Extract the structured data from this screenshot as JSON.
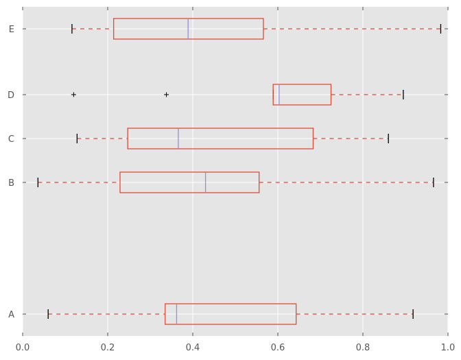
{
  "chart_data": {
    "type": "boxplot",
    "orientation": "horizontal",
    "style": "ggplot",
    "grid": true,
    "xlim": [
      0.0,
      1.0
    ],
    "xticks": [
      "0.0",
      "0.2",
      "0.4",
      "0.6",
      "0.8",
      "1.0"
    ],
    "xtick_values": [
      0.0,
      0.2,
      0.4,
      0.6,
      0.8,
      1.0
    ],
    "ylim": [
      0.5,
      8.0
    ],
    "colors": {
      "plot_background": "#e5e5e5",
      "grid": "#ffffff",
      "box": "#e24a33",
      "median": "#988ed5",
      "whisker": "#e24a33",
      "cap": "#000000",
      "flier": "#000000"
    },
    "boxes": [
      {
        "label": "A",
        "position": 1,
        "whislo": 0.06,
        "q1": 0.335,
        "median": 0.362,
        "q3": 0.643,
        "whishi": 0.918,
        "fliers": []
      },
      {
        "label": "B",
        "position": 4,
        "whislo": 0.036,
        "q1": 0.229,
        "median": 0.43,
        "q3": 0.556,
        "whishi": 0.966,
        "fliers": []
      },
      {
        "label": "C",
        "position": 5,
        "whislo": 0.128,
        "q1": 0.247,
        "median": 0.366,
        "q3": 0.683,
        "whishi": 0.86,
        "fliers": []
      },
      {
        "label": "D",
        "position": 6,
        "whislo": 0.589,
        "q1": 0.589,
        "median": 0.603,
        "q3": 0.725,
        "whishi": 0.895,
        "fliers": [
          0.12,
          0.338
        ]
      },
      {
        "label": "E",
        "position": 7.5,
        "whislo": 0.116,
        "q1": 0.214,
        "median": 0.389,
        "q3": 0.566,
        "whishi": 0.983,
        "fliers": []
      }
    ]
  }
}
